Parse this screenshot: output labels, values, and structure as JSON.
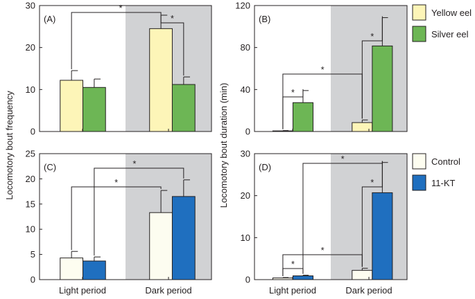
{
  "colors": {
    "yellow_eel": "#fdf5b8",
    "silver_eel": "#6db655",
    "control": "#fdfdf0",
    "kt": "#1f6fbf",
    "dark_shade": "#d1d2d4"
  },
  "legend_top": {
    "yellow": "Yellow eel",
    "silver": "Silver eel"
  },
  "legend_bottom": {
    "control": "Control",
    "kt": "11-KT"
  },
  "ylabel_left": "Locomotory bout frequency",
  "ylabel_right": "Locomotory bout duration (min)",
  "chart_data": [
    {
      "id": "A",
      "panel_label": "(A)",
      "type": "bar",
      "categories": [
        "Light period",
        "Dark period"
      ],
      "series": [
        {
          "name": "Yellow eel",
          "values": [
            12.2,
            24.5
          ],
          "errors": [
            2.3,
            3.2
          ]
        },
        {
          "name": "Silver eel",
          "values": [
            10.5,
            11.2
          ],
          "errors": [
            2.0,
            1.8
          ]
        }
      ],
      "ylim": [
        0,
        30
      ],
      "yticks": [
        0,
        10,
        20,
        30
      ],
      "ylabel": "Locomotory bout frequency",
      "xlabel": "",
      "grid": false,
      "shaded_region": "Dark period",
      "significance": [
        {
          "between": [
            "Light period: Yellow eel",
            "Dark period: Yellow eel"
          ],
          "label": "*"
        },
        {
          "between": [
            "Dark period: Yellow eel",
            "Dark period: Silver eel"
          ],
          "label": "*"
        }
      ]
    },
    {
      "id": "B",
      "panel_label": "(B)",
      "type": "bar",
      "categories": [
        "Light period",
        "Dark period"
      ],
      "series": [
        {
          "name": "Yellow eel",
          "values": [
            0.6,
            8.5
          ],
          "errors": [
            0.3,
            2.5
          ]
        },
        {
          "name": "Silver eel",
          "values": [
            27.5,
            81.5
          ],
          "errors": [
            11.5,
            27
          ]
        }
      ],
      "ylim": [
        0,
        120
      ],
      "yticks": [
        0,
        40,
        80,
        120
      ],
      "ylabel": "Locomotory bout duration (min)",
      "xlabel": "",
      "grid": false,
      "shaded_region": "Dark period",
      "significance": [
        {
          "between": [
            "Light period: Yellow eel",
            "Light period: Silver eel"
          ],
          "label": "*"
        },
        {
          "between": [
            "Dark period: Yellow eel",
            "Dark period: Silver eel"
          ],
          "label": "*"
        },
        {
          "between": [
            "Light period: Yellow eel",
            "Dark period: Yellow eel"
          ],
          "label": "*"
        }
      ]
    },
    {
      "id": "C",
      "panel_label": "(C)",
      "type": "bar",
      "categories": [
        "Light period",
        "Dark period"
      ],
      "series": [
        {
          "name": "Control",
          "values": [
            4.3,
            13.3
          ],
          "errors": [
            1.3,
            4.4
          ]
        },
        {
          "name": "11-KT",
          "values": [
            3.7,
            16.5
          ],
          "errors": [
            0.8,
            3.3
          ]
        }
      ],
      "ylim": [
        0,
        25
      ],
      "yticks": [
        0,
        5,
        10,
        15,
        20,
        25
      ],
      "ylabel": "Locomotory bout frequency",
      "xlabel": "",
      "grid": false,
      "shaded_region": "Dark period",
      "significance": [
        {
          "between": [
            "Light period: Control",
            "Dark period: Control"
          ],
          "label": "*"
        },
        {
          "between": [
            "Light period: 11-KT",
            "Dark period: 11-KT"
          ],
          "label": "*"
        }
      ]
    },
    {
      "id": "D",
      "panel_label": "(D)",
      "type": "bar",
      "categories": [
        "Light period",
        "Dark period"
      ],
      "series": [
        {
          "name": "Control",
          "values": [
            0.4,
            2.2
          ],
          "errors": [
            0.1,
            0.5
          ]
        },
        {
          "name": "11-KT",
          "values": [
            0.9,
            20.7
          ],
          "errors": [
            0.15,
            7.2
          ]
        }
      ],
      "ylim": [
        0,
        30
      ],
      "yticks": [
        0,
        10,
        20,
        30
      ],
      "ylabel": "Locomotory bout duration (min)",
      "xlabel": "",
      "grid": false,
      "shaded_region": "Dark period",
      "significance": [
        {
          "between": [
            "Light period: Control",
            "Light period: 11-KT"
          ],
          "label": "*"
        },
        {
          "between": [
            "Dark period: Control",
            "Dark period: 11-KT"
          ],
          "label": "*"
        },
        {
          "between": [
            "Light period: Control",
            "Dark period: Control"
          ],
          "label": "*"
        },
        {
          "between": [
            "Light period: 11-KT",
            "Dark period: 11-KT"
          ],
          "label": "*"
        }
      ]
    }
  ]
}
